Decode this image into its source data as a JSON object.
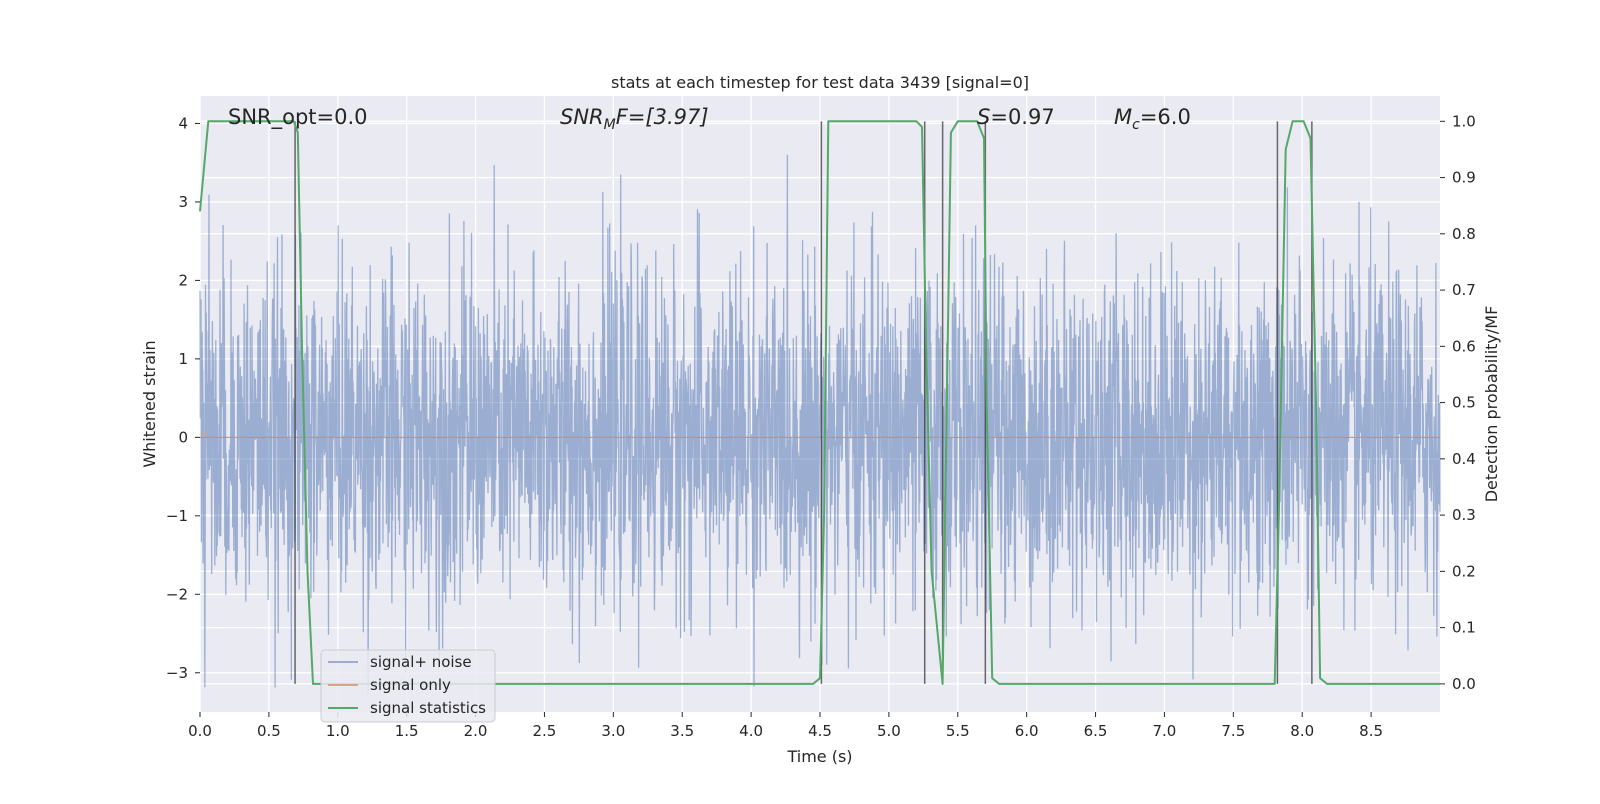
{
  "chart_data": {
    "type": "line",
    "title": "stats at each timestep for test data 3439 [signal=0]",
    "xlabel": "Time (s)",
    "ylabel": "Whitened strain",
    "y2label": "Detection probability/MF",
    "xlim": [
      0.0,
      9.0
    ],
    "ylim": [
      -3.5,
      4.35
    ],
    "y2lim": [
      -0.05,
      1.045
    ],
    "x_ticks": [
      "0.0",
      "0.5",
      "1.0",
      "1.5",
      "2.0",
      "2.5",
      "3.0",
      "3.5",
      "4.0",
      "4.5",
      "5.0",
      "5.5",
      "6.0",
      "6.5",
      "7.0",
      "7.5",
      "8.0",
      "8.5"
    ],
    "y_ticks": [
      "−3",
      "−2",
      "−1",
      "0",
      "1",
      "2",
      "3",
      "4"
    ],
    "y2_ticks": [
      "0.0",
      "0.1",
      "0.2",
      "0.3",
      "0.4",
      "0.5",
      "0.6",
      "0.7",
      "0.8",
      "0.9",
      "1.0"
    ],
    "grid": true,
    "legend_placement": "lower-left",
    "annotations": {
      "snr_opt": "SNR_opt=0.0",
      "snr_mf_main": "SNR",
      "snr_mf_sub": "M",
      "snr_mf_tail": "F=[3.97]",
      "s_main": "S",
      "s_tail": "=0.97",
      "mc_main": "M",
      "mc_sub": "c",
      "mc_tail": "=6.0"
    },
    "series": [
      {
        "name": "signal+ noise",
        "color": "#4c72b0",
        "note": "whitened noise, ~ gaussian, amplitude range about -3.4 to 3.6",
        "amplitude_range": [
          -3.4,
          3.6
        ]
      },
      {
        "name": "signal only",
        "color": "#dd8452",
        "x": [
          0.0,
          9.0
        ],
        "y": [
          0.0,
          0.0
        ]
      },
      {
        "name": "signal statistics",
        "color": "#55a868",
        "axis": "right",
        "x": [
          0.0,
          0.06,
          0.11,
          0.68,
          0.71,
          0.74,
          0.78,
          0.82,
          4.45,
          4.5,
          4.53,
          4.56,
          4.6,
          5.2,
          5.24,
          5.27,
          5.31,
          5.39,
          5.45,
          5.5,
          5.55,
          5.64,
          5.69,
          5.71,
          5.75,
          5.8,
          7.8,
          7.83,
          7.88,
          7.93,
          8.01,
          8.06,
          8.1,
          8.13,
          8.18,
          9.0
        ],
        "y": [
          0.84,
          1.0,
          1.0,
          1.0,
          0.98,
          0.6,
          0.2,
          0.0,
          0.0,
          0.01,
          0.3,
          1.0,
          1.0,
          1.0,
          0.99,
          0.6,
          0.2,
          0.0,
          0.98,
          1.0,
          1.0,
          1.0,
          0.97,
          0.5,
          0.01,
          0.0,
          0.0,
          0.3,
          0.95,
          1.0,
          1.0,
          0.97,
          0.5,
          0.01,
          0.0,
          0.0
        ]
      }
    ],
    "vlines": [
      0.69,
      4.51,
      5.26,
      5.39,
      5.7,
      7.82,
      8.07
    ]
  }
}
